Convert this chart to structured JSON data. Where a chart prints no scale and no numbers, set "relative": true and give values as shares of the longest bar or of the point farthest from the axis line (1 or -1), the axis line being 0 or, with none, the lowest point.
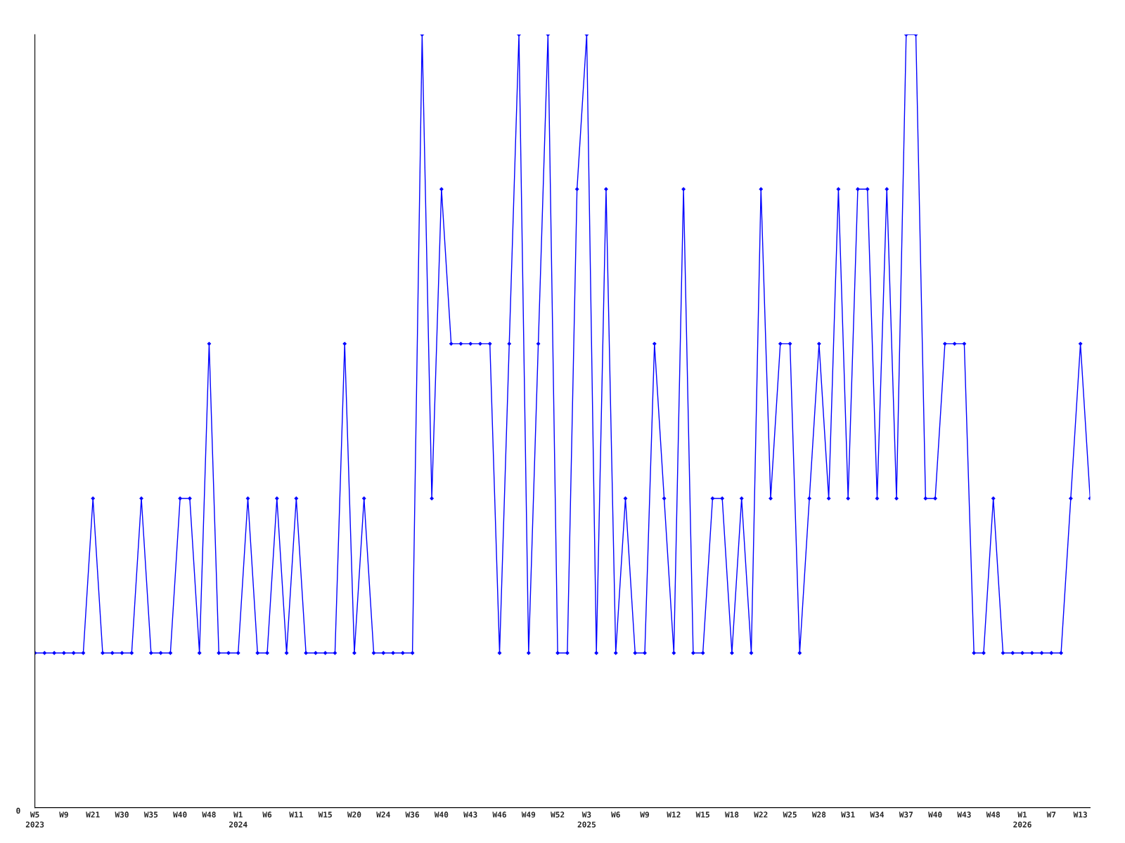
{
  "chart_data": {
    "type": "line",
    "relative": true,
    "marker": "diamond",
    "line_style": "solid",
    "grid": false,
    "legend": false,
    "annotations": [
      "0"
    ],
    "categories": [
      "W5\n2023",
      null,
      null,
      "W9",
      null,
      null,
      "W21",
      null,
      null,
      "W30",
      null,
      null,
      "W35",
      null,
      null,
      "W40",
      null,
      null,
      "W48",
      null,
      null,
      "W1\n2024",
      null,
      null,
      "W6",
      null,
      null,
      "W11",
      null,
      null,
      "W15",
      null,
      null,
      "W20",
      null,
      null,
      "W24",
      null,
      null,
      "W36",
      null,
      null,
      "W40",
      null,
      null,
      "W43",
      null,
      null,
      "W46",
      null,
      null,
      "W49",
      null,
      null,
      "W52",
      null,
      null,
      "W3\n2025",
      null,
      null,
      "W6",
      null,
      null,
      "W9",
      null,
      null,
      "W12",
      null,
      null,
      "W15",
      null,
      null,
      "W18",
      null,
      null,
      "W22",
      null,
      null,
      "W25",
      null,
      null,
      "W28",
      null,
      null,
      "W31",
      null,
      null,
      "W34",
      null,
      null,
      "W37",
      null,
      null,
      "W40",
      null,
      null,
      "W43",
      null,
      null,
      "W48",
      null,
      null,
      "W1\n2026",
      null,
      null,
      "W7",
      null,
      null,
      "W13",
      null
    ],
    "series": [
      {
        "color": "#0000ff",
        "values": [
          0.2,
          0.2,
          0.2,
          0.2,
          0.2,
          0.2,
          0.4,
          0.2,
          0.2,
          0.2,
          0.2,
          0.4,
          0.2,
          0.2,
          0.2,
          0.4,
          0.4,
          0.2,
          0.6,
          0.2,
          0.2,
          0.2,
          0.4,
          0.2,
          0.2,
          0.4,
          0.2,
          0.4,
          0.2,
          0.2,
          0.2,
          0.2,
          0.6,
          0.2,
          0.4,
          0.2,
          0.2,
          0.2,
          0.2,
          0.2,
          1.0,
          0.4,
          0.8,
          0.6,
          0.6,
          0.6,
          0.6,
          0.6,
          0.2,
          0.6,
          1.0,
          0.2,
          0.6,
          1.0,
          0.2,
          0.2,
          0.8,
          1.0,
          0.2,
          0.8,
          0.2,
          0.4,
          0.2,
          0.2,
          0.6,
          0.4,
          0.2,
          0.8,
          0.2,
          0.2,
          0.4,
          0.4,
          0.2,
          0.4,
          0.2,
          0.8,
          0.4,
          0.6,
          0.6,
          0.2,
          0.4,
          0.6,
          0.4,
          0.8,
          0.4,
          0.8,
          0.8,
          0.4,
          0.8,
          0.4,
          1.0,
          1.0,
          0.4,
          0.4,
          0.6,
          0.6,
          0.6,
          0.2,
          0.2,
          0.4,
          0.2,
          0.2,
          0.2,
          0.2,
          0.2,
          0.2,
          0.2,
          0.4,
          0.6,
          0.4
        ]
      }
    ]
  }
}
